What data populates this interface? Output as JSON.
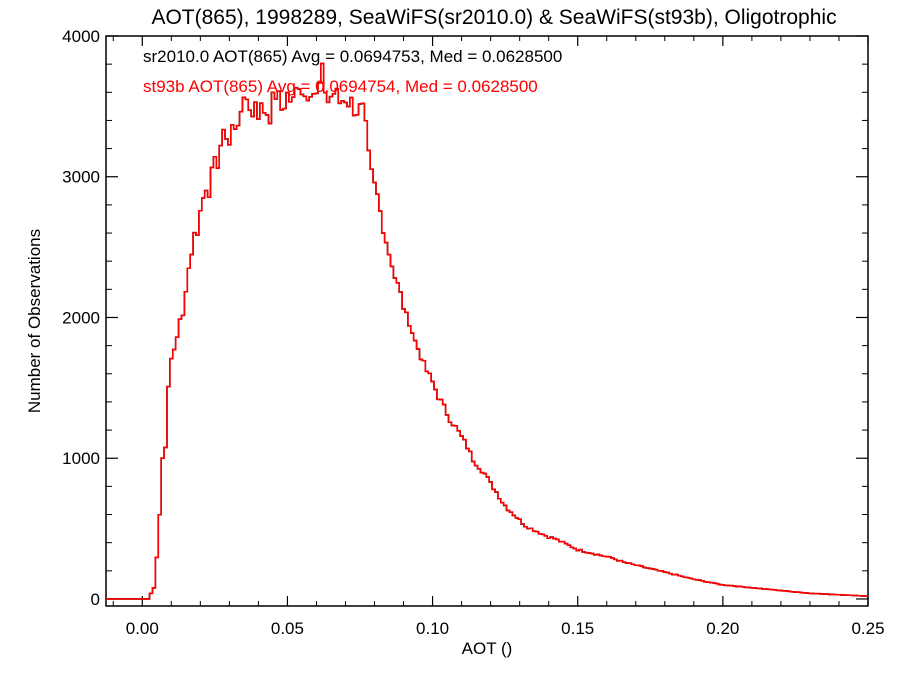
{
  "chart_data": {
    "type": "histogram",
    "title": "AOT(865), 1998289, SeaWiFS(sr2010.0) & SeaWiFS(st93b), Oligotrophic",
    "xlabel": "AOT ()",
    "ylabel": "Number of Observations",
    "xlim": [
      -0.0125,
      0.25
    ],
    "ylim": [
      -50,
      4000
    ],
    "x_ticks": [
      0.0,
      0.05,
      0.1,
      0.15,
      0.2,
      0.25
    ],
    "x_tick_labels": [
      "0.00",
      "0.05",
      "0.10",
      "0.15",
      "0.20",
      "0.25"
    ],
    "y_ticks": [
      0,
      1000,
      2000,
      3000,
      4000
    ],
    "y_tick_labels": [
      "0",
      "1000",
      "2000",
      "3000",
      "4000"
    ],
    "grid": false,
    "legend_placement": "top-left",
    "bin_width": 0.001,
    "bin_start": -0.0125,
    "series": [
      {
        "name": "sr2010.0",
        "color": "#000000",
        "label": "sr2010.0 AOT(865) Avg = 0.0694753, Med = 0.0628500"
      },
      {
        "name": "st93b",
        "color": "#ff0000",
        "label": "st93b AOT(865) Avg = 0.0694754, Med = 0.0628500"
      }
    ],
    "anchors": [
      [
        -0.0125,
        0
      ],
      [
        0.002,
        0
      ],
      [
        0.004,
        80
      ],
      [
        0.005,
        300
      ],
      [
        0.006,
        600
      ],
      [
        0.007,
        1000
      ],
      [
        0.008,
        1100
      ],
      [
        0.009,
        1480
      ],
      [
        0.01,
        1700
      ],
      [
        0.011,
        1780
      ],
      [
        0.012,
        1880
      ],
      [
        0.013,
        1960
      ],
      [
        0.014,
        2000
      ],
      [
        0.015,
        2230
      ],
      [
        0.016,
        2350
      ],
      [
        0.017,
        2480
      ],
      [
        0.018,
        2580
      ],
      [
        0.019,
        2630
      ],
      [
        0.02,
        2750
      ],
      [
        0.021,
        2850
      ],
      [
        0.022,
        2950
      ],
      [
        0.023,
        2920
      ],
      [
        0.024,
        3000
      ],
      [
        0.025,
        3070
      ],
      [
        0.026,
        3120
      ],
      [
        0.027,
        3230
      ],
      [
        0.028,
        3260
      ],
      [
        0.029,
        3320
      ],
      [
        0.03,
        3240
      ],
      [
        0.031,
        3360
      ],
      [
        0.032,
        3310
      ],
      [
        0.033,
        3400
      ],
      [
        0.034,
        3520
      ],
      [
        0.035,
        3480
      ],
      [
        0.036,
        3560
      ],
      [
        0.037,
        3520
      ],
      [
        0.038,
        3420
      ],
      [
        0.039,
        3560
      ],
      [
        0.04,
        3470
      ],
      [
        0.042,
        3480
      ],
      [
        0.044,
        3450
      ],
      [
        0.046,
        3600
      ],
      [
        0.048,
        3480
      ],
      [
        0.05,
        3580
      ],
      [
        0.052,
        3520
      ],
      [
        0.054,
        3690
      ],
      [
        0.056,
        3580
      ],
      [
        0.058,
        3650
      ],
      [
        0.06,
        3560
      ],
      [
        0.062,
        3720
      ],
      [
        0.064,
        3540
      ],
      [
        0.066,
        3600
      ],
      [
        0.068,
        3530
      ],
      [
        0.07,
        3570
      ],
      [
        0.072,
        3520
      ],
      [
        0.074,
        3480
      ],
      [
        0.076,
        3460
      ],
      [
        0.077,
        3320
      ],
      [
        0.078,
        3120
      ],
      [
        0.079,
        3000
      ],
      [
        0.08,
        2930
      ],
      [
        0.081,
        2860
      ],
      [
        0.082,
        2750
      ],
      [
        0.083,
        2650
      ],
      [
        0.084,
        2550
      ],
      [
        0.085,
        2460
      ],
      [
        0.086,
        2390
      ],
      [
        0.087,
        2290
      ],
      [
        0.088,
        2230
      ],
      [
        0.089,
        2160
      ],
      [
        0.09,
        2080
      ],
      [
        0.091,
        2000
      ],
      [
        0.092,
        1980
      ],
      [
        0.093,
        1900
      ],
      [
        0.094,
        1830
      ],
      [
        0.095,
        1780
      ],
      [
        0.096,
        1730
      ],
      [
        0.097,
        1660
      ],
      [
        0.098,
        1620
      ],
      [
        0.1,
        1540
      ],
      [
        0.102,
        1440
      ],
      [
        0.104,
        1360
      ],
      [
        0.106,
        1280
      ],
      [
        0.108,
        1220
      ],
      [
        0.11,
        1150
      ],
      [
        0.112,
        1080
      ],
      [
        0.114,
        990
      ],
      [
        0.116,
        940
      ],
      [
        0.118,
        890
      ],
      [
        0.12,
        820
      ],
      [
        0.122,
        760
      ],
      [
        0.124,
        690
      ],
      [
        0.126,
        640
      ],
      [
        0.128,
        600
      ],
      [
        0.13,
        560
      ],
      [
        0.132,
        520
      ],
      [
        0.134,
        500
      ],
      [
        0.136,
        480
      ],
      [
        0.138,
        460
      ],
      [
        0.14,
        440
      ],
      [
        0.142,
        430
      ],
      [
        0.144,
        410
      ],
      [
        0.146,
        390
      ],
      [
        0.148,
        370
      ],
      [
        0.15,
        350
      ],
      [
        0.154,
        330
      ],
      [
        0.158,
        310
      ],
      [
        0.162,
        290
      ],
      [
        0.166,
        260
      ],
      [
        0.17,
        240
      ],
      [
        0.174,
        220
      ],
      [
        0.178,
        200
      ],
      [
        0.182,
        180
      ],
      [
        0.186,
        160
      ],
      [
        0.19,
        140
      ],
      [
        0.195,
        120
      ],
      [
        0.2,
        100
      ],
      [
        0.205,
        90
      ],
      [
        0.21,
        80
      ],
      [
        0.215,
        70
      ],
      [
        0.22,
        60
      ],
      [
        0.225,
        50
      ],
      [
        0.23,
        40
      ],
      [
        0.235,
        35
      ],
      [
        0.24,
        30
      ],
      [
        0.245,
        25
      ],
      [
        0.25,
        20
      ]
    ]
  }
}
